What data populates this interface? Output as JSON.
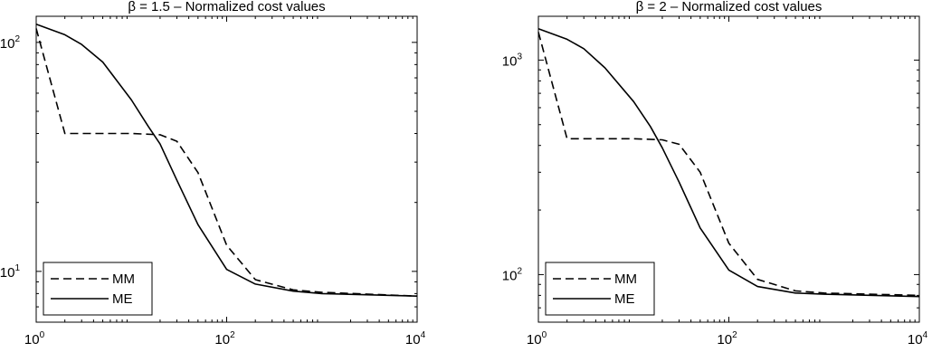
{
  "chart_data": [
    {
      "type": "line",
      "title": "β = 1.5 – Normalized cost values",
      "xlabel": "",
      "ylabel": "",
      "xscale": "log",
      "yscale": "log",
      "xlim": [
        1,
        10000
      ],
      "ylim": [
        6,
        130
      ],
      "x_ticks": [
        {
          "value": 1,
          "base": "10",
          "exp": "0"
        },
        {
          "value": 100,
          "base": "10",
          "exp": "2"
        },
        {
          "value": 10000,
          "base": "10",
          "exp": "4"
        }
      ],
      "y_ticks": [
        {
          "value": 10,
          "base": "10",
          "exp": "1"
        },
        {
          "value": 100,
          "base": "10",
          "exp": "2"
        }
      ],
      "legend": {
        "placement": "bottom-left"
      },
      "series": [
        {
          "name": "MM",
          "style": "dashed",
          "x": [
            1,
            2,
            5,
            10,
            20,
            30,
            50,
            100,
            200,
            500,
            1000,
            10000
          ],
          "y": [
            115,
            40,
            40,
            40,
            39.5,
            37,
            27,
            13,
            9.2,
            8.3,
            8.1,
            7.8
          ]
        },
        {
          "name": "ME",
          "style": "solid",
          "x": [
            1,
            2,
            3,
            5,
            10,
            15,
            20,
            30,
            50,
            100,
            200,
            500,
            1000,
            10000
          ],
          "y": [
            120,
            108,
            98,
            82,
            56,
            43,
            36,
            25,
            16,
            10.2,
            8.8,
            8.2,
            8.0,
            7.8
          ]
        }
      ]
    },
    {
      "type": "line",
      "title": "β = 2 – Normalized cost values",
      "xlabel": "",
      "ylabel": "",
      "xscale": "log",
      "yscale": "log",
      "xlim": [
        1,
        10000
      ],
      "ylim": [
        60,
        1600
      ],
      "x_ticks": [
        {
          "value": 1,
          "base": "10",
          "exp": "0"
        },
        {
          "value": 100,
          "base": "10",
          "exp": "2"
        },
        {
          "value": 10000,
          "base": "10",
          "exp": "4"
        }
      ],
      "y_ticks": [
        {
          "value": 100,
          "base": "10",
          "exp": "2"
        },
        {
          "value": 1000,
          "base": "10",
          "exp": "3"
        }
      ],
      "legend": {
        "placement": "bottom-left"
      },
      "series": [
        {
          "name": "MM",
          "style": "dashed",
          "x": [
            1,
            2,
            5,
            10,
            20,
            30,
            50,
            100,
            200,
            500,
            1000,
            10000
          ],
          "y": [
            1350,
            430,
            430,
            430,
            425,
            405,
            300,
            140,
            95,
            84,
            82,
            80
          ]
        },
        {
          "name": "ME",
          "style": "solid",
          "x": [
            1,
            2,
            3,
            5,
            10,
            15,
            20,
            30,
            50,
            100,
            200,
            500,
            1000,
            10000
          ],
          "y": [
            1400,
            1250,
            1130,
            920,
            640,
            490,
            390,
            270,
            165,
            105,
            88,
            82,
            81,
            79
          ]
        }
      ]
    }
  ]
}
